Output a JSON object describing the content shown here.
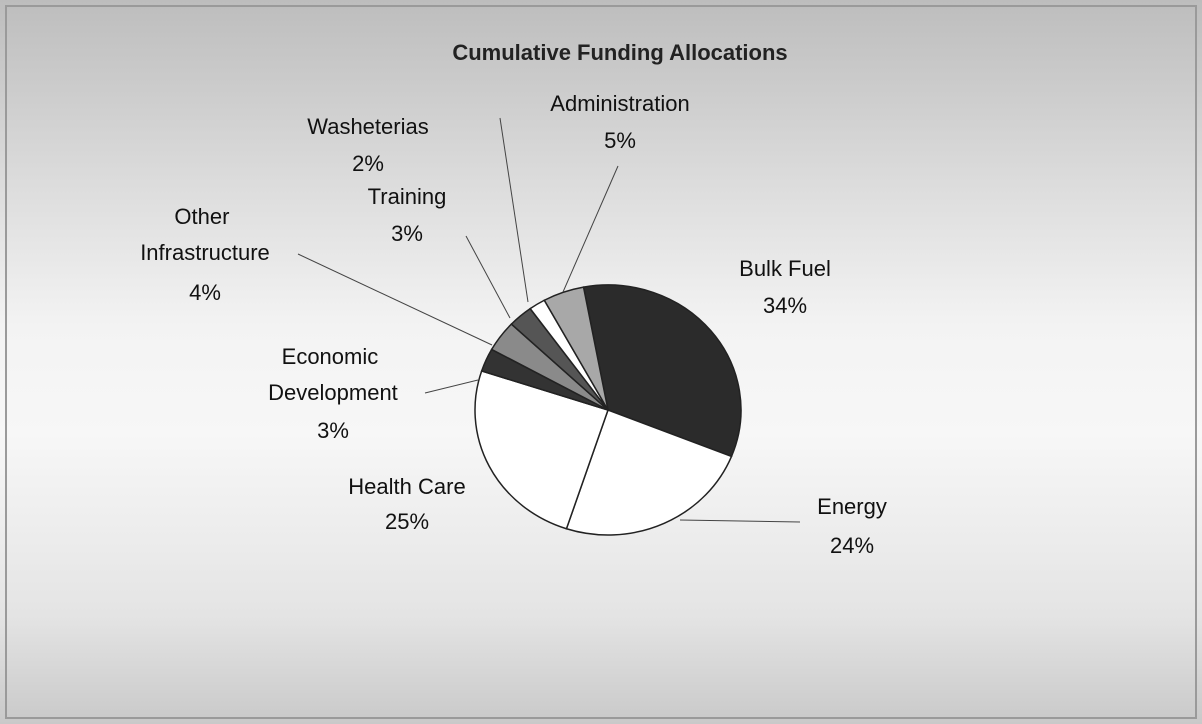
{
  "chart_data": {
    "type": "pie",
    "title": "Cumulative Funding Allocations",
    "categories": [
      "Bulk Fuel",
      "Energy",
      "Health Care",
      "Economic Development",
      "Other Infrastructure",
      "Training",
      "Washeterias",
      "Administration"
    ],
    "values": [
      34,
      24,
      25,
      3,
      4,
      3,
      2,
      5
    ],
    "value_labels": [
      "34%",
      "24%",
      "25%",
      "3%",
      "4%",
      "3%",
      "2%",
      "5%"
    ],
    "colors": [
      "#2b2b2b",
      "#ffffff",
      "#ffffff",
      "#333333",
      "#8a8a8a",
      "#555555",
      "#ffffff",
      "#a8a8a8"
    ]
  }
}
